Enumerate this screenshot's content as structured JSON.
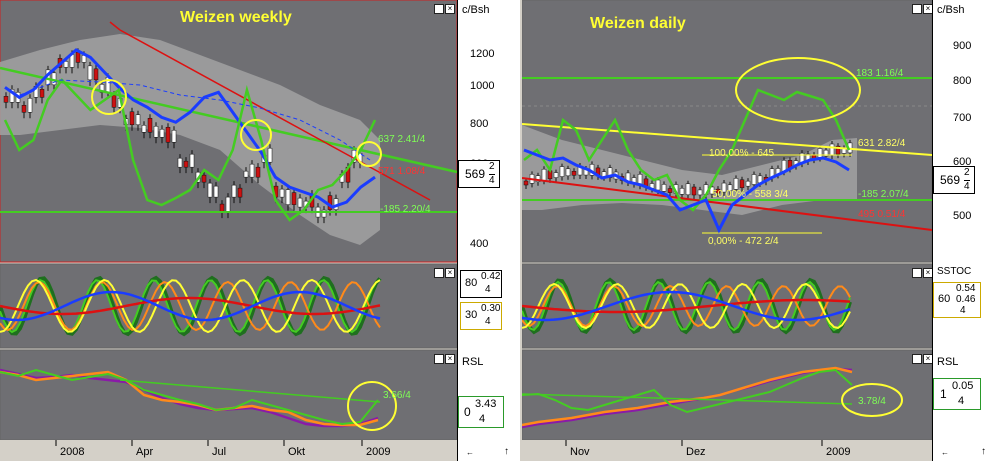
{
  "colors": {
    "plot_bg": "#6f6f73",
    "band": "#9a9a9a",
    "green": "#44cc22",
    "blue": "#1a3cff",
    "red": "#dd1111",
    "yellow": "#ffff33",
    "orange": "#ff8a1a",
    "purple": "#8a1aa8",
    "darkgreen": "#1f6f1f",
    "axis_bg": "#ffffff",
    "label_green": "#7fff55",
    "label_red": "#ff3333",
    "label_yellow": "#ffff66"
  },
  "left": {
    "title": "Weizen weekly",
    "unit": "c/Bsh",
    "yticks": [
      "1200",
      "1000",
      "800",
      "600",
      "400"
    ],
    "xticks": [
      "2008",
      "Apr",
      "Jul",
      "Okt",
      "2009"
    ],
    "price": {
      "int": "569",
      "num": "2",
      "den": "4"
    },
    "labels": {
      "l1": "637 2.41/4",
      "l2": "571 1.08/4",
      "l3": "-185 2.20/4"
    },
    "stoch": {
      "price": {
        "int": "80",
        "num": "0.42",
        "den": "4"
      },
      "price2": {
        "int": "30",
        "num": "0.30",
        "den": "4"
      }
    },
    "rsl": {
      "title": "RSL",
      "price": {
        "int": "0",
        "num": "3.43",
        "den": "4"
      },
      "label": "3.66/4"
    },
    "chart_data": {
      "type": "line",
      "series": [
        {
          "name": "",
          "values": [
            1000,
            960,
            990,
            1050,
            1100,
            1150,
            1120,
            1060,
            1000,
            950,
            920,
            880,
            860,
            900,
            960,
            980,
            900,
            820,
            740,
            640,
            600,
            580,
            560,
            520,
            540,
            600,
            640
          ]
        },
        {
          "name": "",
          "values": [
            940,
            900,
            960,
            1010,
            1080,
            1100,
            1030,
            980,
            920,
            850,
            820,
            800,
            780,
            680,
            620,
            560,
            500,
            560,
            640,
            700,
            560,
            530,
            520,
            480,
            510,
            620,
            700
          ]
        }
      ],
      "ylim": [
        300,
        1350
      ]
    }
  },
  "right": {
    "title": "Weizen daily",
    "unit": "c/Bsh",
    "yticks": [
      "900",
      "800",
      "700",
      "600",
      "500"
    ],
    "xticks": [
      "Nov",
      "Dez",
      "2009"
    ],
    "price": {
      "int": "569",
      "num": "2",
      "den": "4"
    },
    "labels": {
      "top": "183 1.16/4",
      "fib100": "100,00% - 645",
      "r631": "631 2.82/4",
      "fib50": "50,00% - 558 3/4",
      "g185": "-185 2.07/4",
      "r495": "495 0.51/4",
      "fib0": "0,00% - 472 2/4"
    },
    "stoch": {
      "title": "SSTOC",
      "price": {
        "int": "60",
        "num": "0.54",
        "den": "4"
      },
      "price2": {
        "num": "0.46",
        "den": "4"
      }
    },
    "rsl": {
      "title": "RSL",
      "price": {
        "int": "1",
        "num": "0.05",
        "den": "4"
      },
      "label": "3.78/4"
    }
  },
  "nav": {
    "left": "←",
    "right": "→",
    "up": "↑"
  }
}
